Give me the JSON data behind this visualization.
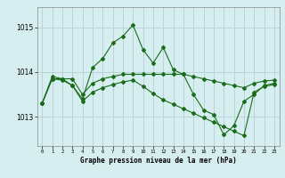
{
  "title": "",
  "xlabel": "Graphe pression niveau de la mer (hPa)",
  "ylabel": "",
  "background_color": "#d6eef0",
  "grid_color": "#b8d4d8",
  "line_color": "#1a6b1a",
  "marker_color": "#1a6b1a",
  "xlim": [
    -0.5,
    23.5
  ],
  "ylim": [
    1012.35,
    1015.45
  ],
  "yticks": [
    1013,
    1014,
    1015
  ],
  "xticks": [
    0,
    1,
    2,
    3,
    4,
    5,
    6,
    7,
    8,
    9,
    10,
    11,
    12,
    13,
    14,
    15,
    16,
    17,
    18,
    19,
    20,
    21,
    22,
    23
  ],
  "series": [
    {
      "x": [
        0,
        1,
        2,
        3,
        4,
        5,
        6,
        7,
        8,
        9,
        10,
        11,
        12,
        13,
        14,
        15,
        16,
        17,
        18,
        19,
        20,
        21,
        22,
        23
      ],
      "y": [
        1013.3,
        1013.85,
        1013.85,
        1013.7,
        1013.4,
        1014.1,
        1014.3,
        1014.65,
        1014.8,
        1015.05,
        1014.5,
        1014.2,
        1014.55,
        1014.05,
        1013.95,
        1013.5,
        1013.15,
        1013.05,
        1012.6,
        1012.8,
        1013.35,
        1013.5,
        1013.7,
        1013.75
      ]
    },
    {
      "x": [
        0,
        1,
        2,
        3,
        4,
        5,
        6,
        7,
        8,
        9,
        10,
        11,
        12,
        13,
        14,
        15,
        16,
        17,
        18,
        19,
        20,
        21,
        22,
        23
      ],
      "y": [
        1013.3,
        1013.9,
        1013.85,
        1013.85,
        1013.5,
        1013.75,
        1013.85,
        1013.9,
        1013.95,
        1013.95,
        1013.95,
        1013.95,
        1013.95,
        1013.95,
        1013.95,
        1013.9,
        1013.85,
        1013.8,
        1013.75,
        1013.7,
        1013.65,
        1013.75,
        1013.8,
        1013.82
      ]
    },
    {
      "x": [
        0,
        1,
        2,
        3,
        4,
        5,
        6,
        7,
        8,
        9,
        10,
        11,
        12,
        13,
        14,
        15,
        16,
        17,
        18,
        19,
        20,
        21,
        22,
        23
      ],
      "y": [
        1013.3,
        1013.85,
        1013.82,
        1013.7,
        1013.35,
        1013.55,
        1013.65,
        1013.72,
        1013.78,
        1013.82,
        1013.68,
        1013.52,
        1013.38,
        1013.28,
        1013.18,
        1013.08,
        1012.98,
        1012.88,
        1012.78,
        1012.68,
        1012.58,
        1013.55,
        1013.68,
        1013.72
      ]
    }
  ]
}
